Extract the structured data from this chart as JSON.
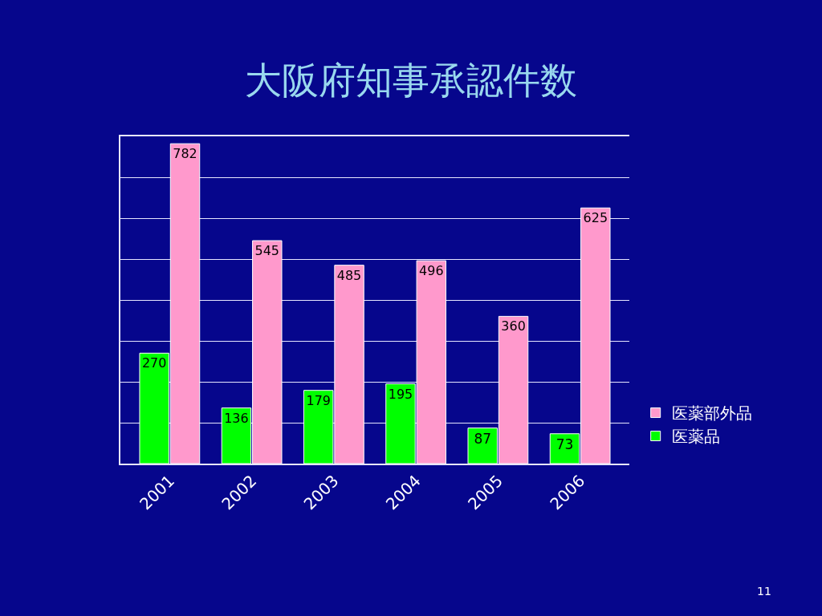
{
  "chart_data": {
    "type": "bar",
    "title": "大阪府知事承認件数",
    "categories": [
      "2001",
      "2002",
      "2003",
      "2004",
      "2005",
      "2006"
    ],
    "series": [
      {
        "name": "医薬品",
        "color": "#00ff00",
        "values": [
          270,
          136,
          179,
          195,
          87,
          73
        ]
      },
      {
        "name": "医薬部外品",
        "color": "#ff99cc",
        "values": [
          782,
          545,
          485,
          496,
          360,
          625
        ]
      }
    ],
    "ylim": [
      0,
      800
    ],
    "yticks": [
      {
        "value": 0,
        "label": null
      },
      {
        "value": 100,
        "label": null
      },
      {
        "value": 200,
        "label": null
      },
      {
        "value": 300,
        "label": null
      },
      {
        "value": 400,
        "label": null
      },
      {
        "value": 500,
        "label": null
      },
      {
        "value": 600,
        "label": null
      },
      {
        "value": 700,
        "label": null
      },
      {
        "value": 800,
        "label": null
      }
    ],
    "tick_labels": "x",
    "grid": "y",
    "data_labels": true,
    "legend": "right",
    "annotations": [
      "11"
    ]
  }
}
